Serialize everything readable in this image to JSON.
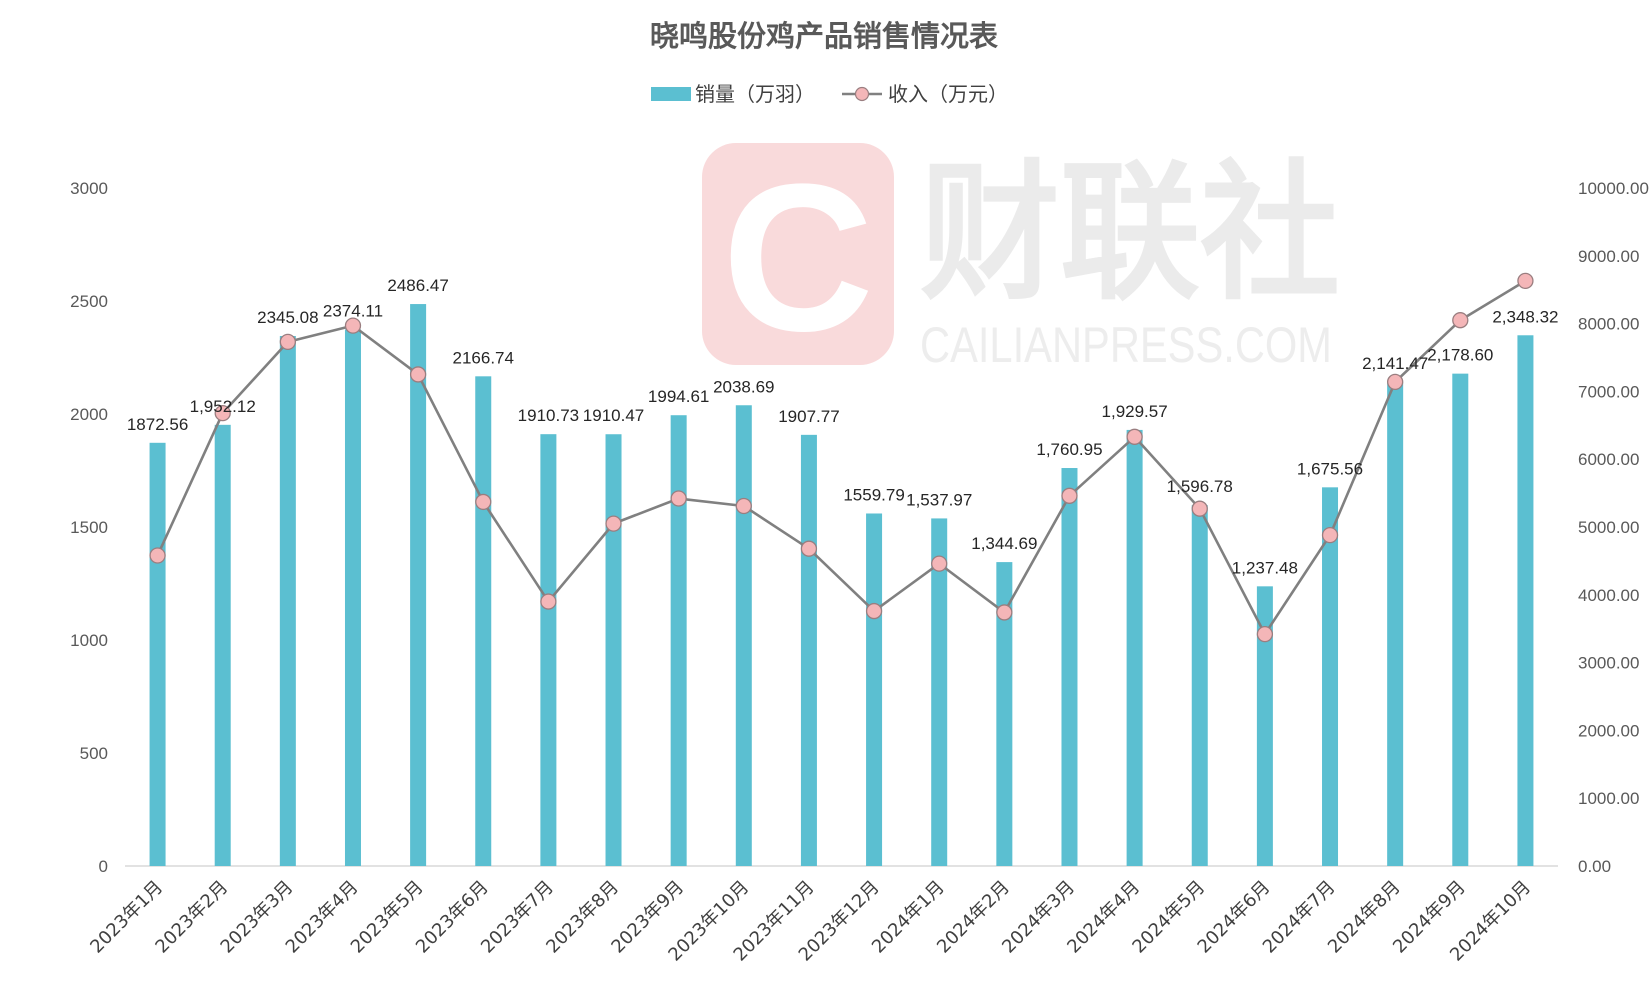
{
  "chart_data": {
    "type": "bar",
    "title": "晓鸣股份鸡产品销售情况表",
    "categories": [
      "2023年1月",
      "2023年2月",
      "2023年3月",
      "2023年4月",
      "2023年5月",
      "2023年6月",
      "2023年7月",
      "2023年8月",
      "2023年9月",
      "2023年10月",
      "2023年11月",
      "2023年12月",
      "2024年1月",
      "2024年2月",
      "2024年3月",
      "2024年4月",
      "2024年5月",
      "2024年6月",
      "2024年7月",
      "2024年8月",
      "2024年9月",
      "2024年10月"
    ],
    "series": [
      {
        "name": "销量（万羽）",
        "type": "bar",
        "axis": "left",
        "color": "#5bbfd1",
        "values": [
          1872.56,
          1952.12,
          2345.08,
          2374.11,
          2486.47,
          2166.74,
          1910.73,
          1910.47,
          1994.61,
          2038.69,
          1907.77,
          1559.79,
          1537.97,
          1344.69,
          1760.95,
          1929.57,
          1596.78,
          1237.48,
          1675.56,
          2141.47,
          2178.6,
          2348.32
        ],
        "labels": [
          "1872.56",
          "1,952.12",
          "2345.08",
          "2374.11",
          "2486.47",
          "2166.74",
          "1910.73",
          "1910.47",
          "1994.61",
          "2038.69",
          "1907.77",
          "1559.79",
          "1,537.97",
          "1,344.69",
          "1,760.95",
          "1,929.57",
          "1,596.78",
          "1,237.48",
          "1,675.56",
          "2,141.47",
          "2,178.60",
          "2,348.32"
        ]
      },
      {
        "name": "收入（万元）",
        "type": "line",
        "axis": "right",
        "color": "#808080",
        "marker_color": "#f4b6b8",
        "values": [
          4580,
          6680,
          7730,
          7970,
          7250,
          5370,
          3900,
          5050,
          5420,
          5310,
          4680,
          3760,
          4460,
          3740,
          5460,
          6330,
          5270,
          3420,
          4880,
          7140,
          8050,
          8630
        ]
      }
    ],
    "y_left": {
      "ylim": [
        0,
        3000
      ],
      "ticks": [
        "0",
        "500",
        "1000",
        "1500",
        "2000",
        "2500",
        "3000"
      ]
    },
    "y_right": {
      "ylim": [
        0,
        10000
      ],
      "ticks": [
        "0.00",
        "1000.00",
        "2000.00",
        "3000.00",
        "4000.00",
        "5000.00",
        "6000.00",
        "7000.00",
        "8000.00",
        "9000.00",
        "10000.00"
      ]
    },
    "legend_position": "top-center",
    "grid": false
  },
  "watermark": {
    "logo_letter": "C",
    "text_cn": "财联社",
    "text_en": "CAILIANPRESS.COM"
  },
  "colors": {
    "bar": "#5bbfd1",
    "line": "#808080",
    "marker": "#f4b6b8",
    "marker_edge": "#9a7e80",
    "watermark_logo": "#f8d6d8"
  }
}
